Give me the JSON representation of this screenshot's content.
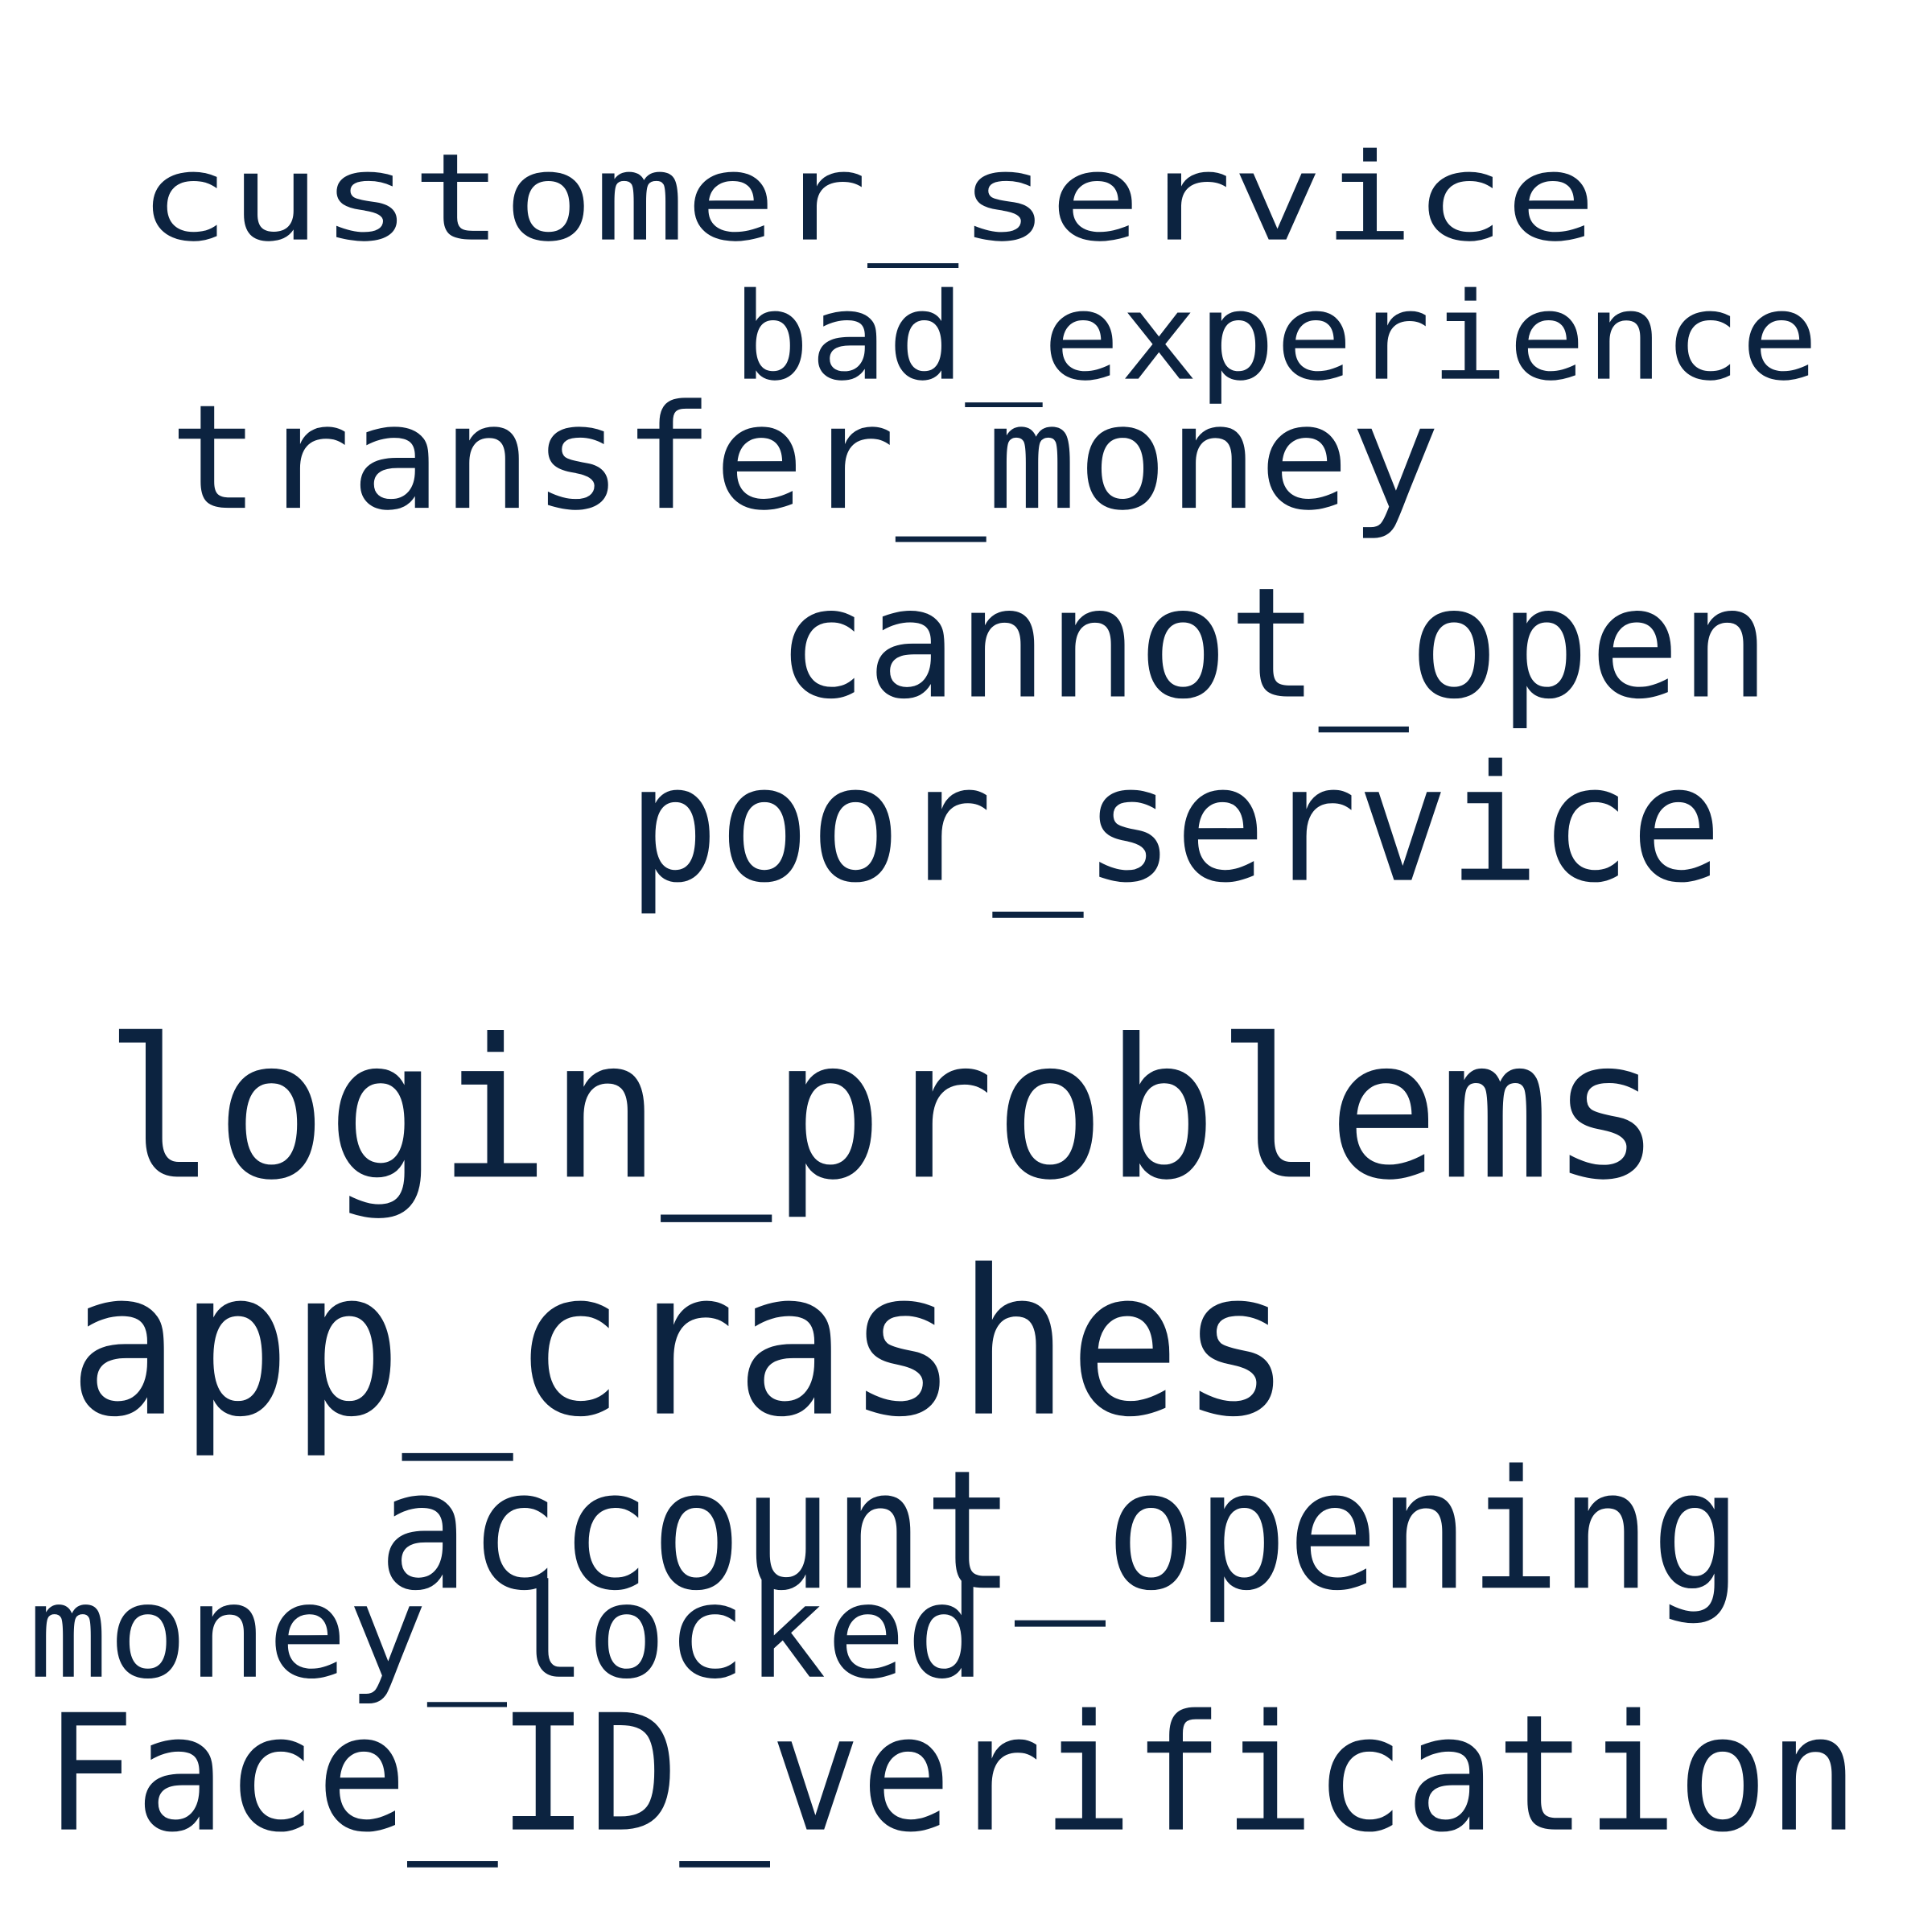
{
  "text_color": "#0c2340",
  "background_color": "#ffffff",
  "words": [
    {
      "id": "customer-service",
      "text": "customer_service"
    },
    {
      "id": "bad-experience",
      "text": "bad_experience"
    },
    {
      "id": "transfer-money",
      "text": "transfer_money"
    },
    {
      "id": "cannot-open",
      "text": "cannot_open"
    },
    {
      "id": "poor-service",
      "text": "poor_service"
    },
    {
      "id": "login-problems",
      "text": "login_problems"
    },
    {
      "id": "app-crashes",
      "text": "app_crashes"
    },
    {
      "id": "account-opening",
      "text": "account_opening"
    },
    {
      "id": "money-locked",
      "text": "money_locked"
    },
    {
      "id": "face-id-verification",
      "text": "Face_ID_verification"
    }
  ]
}
